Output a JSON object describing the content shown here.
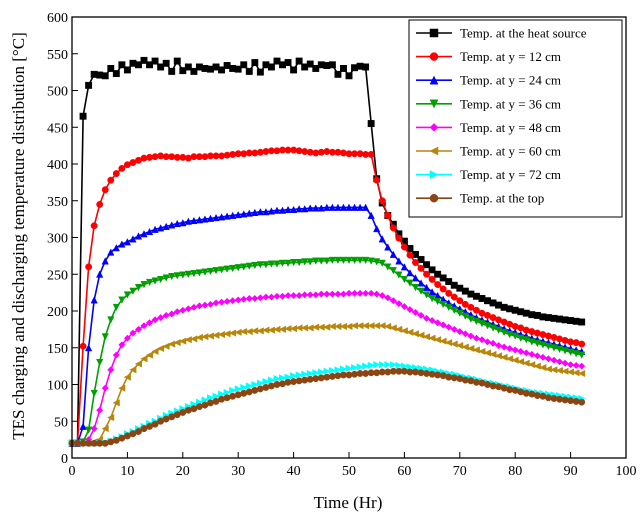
{
  "chart_data": {
    "type": "line",
    "xlabel": "Time (Hr)",
    "ylabel": "TES charging and discharging temperature distribution [°C]",
    "xlim": [
      0,
      100
    ],
    "ylim": [
      0,
      600
    ],
    "xticks": [
      0,
      10,
      20,
      30,
      40,
      50,
      60,
      70,
      80,
      90,
      100
    ],
    "yticks": [
      0,
      50,
      100,
      150,
      200,
      250,
      300,
      350,
      400,
      450,
      500,
      550,
      600
    ],
    "grid": false,
    "legend_position": "top-right",
    "x": [
      0,
      1,
      2,
      3,
      4,
      5,
      6,
      7,
      8,
      9,
      10,
      11,
      12,
      13,
      14,
      15,
      16,
      17,
      18,
      19,
      20,
      21,
      22,
      23,
      24,
      25,
      26,
      27,
      28,
      29,
      30,
      31,
      32,
      33,
      34,
      35,
      36,
      37,
      38,
      39,
      40,
      41,
      42,
      43,
      44,
      45,
      46,
      47,
      48,
      49,
      50,
      51,
      52,
      53,
      54,
      55,
      56,
      57,
      58,
      59,
      60,
      61,
      62,
      63,
      64,
      65,
      66,
      67,
      68,
      69,
      70,
      71,
      72,
      73,
      74,
      75,
      76,
      77,
      78,
      79,
      80,
      81,
      82,
      83,
      84,
      85,
      86,
      87,
      88,
      89,
      90,
      91,
      92
    ],
    "series": [
      {
        "name": "Temp. at the heat source",
        "color": "#000000",
        "marker": "square",
        "values": [
          20,
          20,
          465,
          507,
          522,
          521,
          520,
          530,
          523,
          535,
          528,
          537,
          535,
          541,
          535,
          540,
          532,
          537,
          526,
          540,
          527,
          532,
          526,
          532,
          530,
          529,
          532,
          528,
          534,
          530,
          529,
          535,
          526,
          538,
          525,
          535,
          532,
          540,
          535,
          538,
          528,
          540,
          532,
          536,
          530,
          535,
          534,
          535,
          522,
          530,
          520,
          531,
          533,
          532,
          455,
          380,
          347,
          330,
          318,
          305,
          295,
          285,
          277,
          270,
          263,
          256,
          250,
          245,
          240,
          235,
          231,
          227,
          223,
          220,
          217,
          214,
          211,
          208,
          205,
          203,
          201,
          199,
          197,
          195,
          194,
          192,
          191,
          190,
          189,
          188,
          187,
          186,
          185
        ]
      },
      {
        "name": "Temp. at y = 12 cm",
        "color": "#ff0000",
        "marker": "circle",
        "values": [
          20,
          20,
          152,
          260,
          316,
          345,
          365,
          378,
          387,
          394,
          399,
          402,
          405,
          408,
          409,
          410,
          411,
          410,
          410,
          409,
          409,
          408,
          410,
          410,
          410,
          411,
          411,
          411,
          412,
          413,
          414,
          414,
          415,
          415,
          416,
          417,
          418,
          418,
          419,
          419,
          419,
          418,
          417,
          416,
          415,
          416,
          417,
          416,
          416,
          415,
          414,
          414,
          414,
          413,
          413,
          378,
          350,
          330,
          313,
          299,
          287,
          276,
          266,
          258,
          250,
          243,
          236,
          230,
          224,
          219,
          214,
          209,
          205,
          201,
          197,
          194,
          191,
          188,
          185,
          182,
          179,
          177,
          174,
          172,
          170,
          168,
          166,
          164,
          162,
          160,
          158,
          157,
          155
        ]
      },
      {
        "name": "Temp. at y = 24 cm",
        "color": "#0000ff",
        "marker": "triangle-up",
        "values": [
          20,
          20,
          43,
          150,
          215,
          250,
          268,
          280,
          286,
          291,
          294,
          298,
          302,
          305,
          308,
          311,
          313,
          315,
          317,
          319,
          320,
          322,
          323,
          324,
          325,
          326,
          327,
          328,
          329,
          330,
          331,
          332,
          333,
          334,
          335,
          335,
          336,
          337,
          337,
          338,
          338,
          339,
          339,
          340,
          340,
          340,
          341,
          341,
          341,
          341,
          341,
          341,
          341,
          341,
          330,
          312,
          298,
          287,
          277,
          268,
          260,
          252,
          245,
          238,
          232,
          226,
          221,
          216,
          211,
          207,
          203,
          199,
          195,
          191,
          188,
          185,
          182,
          179,
          176,
          173,
          171,
          168,
          166,
          163,
          161,
          159,
          157,
          155,
          153,
          151,
          149,
          147,
          145
        ]
      },
      {
        "name": "Temp. at y = 36 cm",
        "color": "#00a000",
        "marker": "triangle-down",
        "values": [
          20,
          20,
          22,
          38,
          88,
          130,
          165,
          188,
          205,
          215,
          222,
          227,
          232,
          236,
          239,
          241,
          243,
          245,
          247,
          248,
          249,
          250,
          251,
          252,
          253,
          254,
          255,
          256,
          257,
          258,
          259,
          260,
          261,
          262,
          263,
          263,
          264,
          264,
          265,
          265,
          266,
          266,
          267,
          267,
          268,
          268,
          268,
          269,
          269,
          269,
          269,
          269,
          269,
          269,
          268,
          267,
          265,
          260,
          255,
          249,
          243,
          238,
          232,
          227,
          222,
          217,
          213,
          209,
          205,
          201,
          197,
          193,
          189,
          186,
          183,
          180,
          177,
          174,
          171,
          168,
          166,
          163,
          161,
          158,
          156,
          154,
          152,
          150,
          148,
          146,
          144,
          142,
          140
        ]
      },
      {
        "name": "Temp. at y = 48 cm",
        "color": "#ff00ff",
        "marker": "diamond",
        "values": [
          20,
          20,
          20,
          25,
          40,
          65,
          95,
          120,
          140,
          154,
          163,
          170,
          175,
          180,
          184,
          188,
          191,
          194,
          196,
          199,
          201,
          203,
          205,
          207,
          208,
          209,
          211,
          212,
          213,
          214,
          215,
          216,
          217,
          217,
          218,
          219,
          219,
          220,
          220,
          221,
          221,
          221,
          222,
          222,
          222,
          223,
          223,
          223,
          223,
          223,
          224,
          224,
          224,
          224,
          224,
          223,
          221,
          218,
          214,
          210,
          206,
          202,
          198,
          194,
          190,
          187,
          184,
          181,
          178,
          175,
          172,
          169,
          166,
          163,
          161,
          158,
          156,
          153,
          151,
          149,
          147,
          145,
          143,
          141,
          139,
          137,
          135,
          133,
          131,
          129,
          127,
          126,
          125
        ]
      },
      {
        "name": "Temp. at y = 60 cm",
        "color": "#b8860b",
        "marker": "triangle-left",
        "values": [
          20,
          20,
          20,
          20,
          22,
          25,
          40,
          55,
          75,
          95,
          110,
          120,
          128,
          135,
          140,
          145,
          149,
          152,
          155,
          157,
          159,
          161,
          162,
          164,
          165,
          166,
          167,
          168,
          169,
          170,
          171,
          172,
          172,
          173,
          173,
          174,
          174,
          175,
          175,
          176,
          176,
          177,
          177,
          177,
          178,
          178,
          178,
          179,
          179,
          179,
          179,
          180,
          180,
          180,
          180,
          180,
          180,
          179,
          177,
          175,
          173,
          171,
          169,
          167,
          165,
          163,
          161,
          159,
          157,
          155,
          153,
          151,
          149,
          147,
          145,
          143,
          141,
          139,
          137,
          135,
          133,
          131,
          129,
          127,
          125,
          123,
          121,
          120,
          119,
          118,
          117,
          116,
          115
        ]
      },
      {
        "name": "Temp. at y = 72 cm",
        "color": "#00ffff",
        "marker": "triangle-right",
        "values": [
          20,
          20,
          20,
          20,
          20,
          20,
          21,
          23,
          26,
          29,
          33,
          36,
          40,
          43,
          47,
          50,
          54,
          58,
          61,
          64,
          67,
          70,
          73,
          76,
          79,
          82,
          84,
          87,
          89,
          92,
          94,
          96,
          98,
          100,
          102,
          104,
          106,
          108,
          109,
          110,
          112,
          113,
          114,
          115,
          116,
          117,
          118,
          119,
          120,
          121,
          122,
          123,
          124,
          125,
          126,
          127,
          127,
          127,
          127,
          126,
          125,
          124,
          123,
          122,
          121,
          120,
          118,
          117,
          115,
          114,
          112,
          110,
          109,
          107,
          105,
          103,
          102,
          100,
          98,
          97,
          95,
          93,
          92,
          90,
          89,
          88,
          87,
          86,
          85,
          84,
          83,
          82,
          81
        ]
      },
      {
        "name": "Temp. at the top",
        "color": "#8b4513",
        "marker": "circle",
        "values": [
          20,
          20,
          20,
          20,
          20,
          20,
          20,
          22,
          24,
          27,
          30,
          33,
          36,
          40,
          43,
          46,
          50,
          53,
          56,
          59,
          62,
          65,
          67,
          70,
          72,
          75,
          77,
          80,
          82,
          84,
          86,
          88,
          90,
          92,
          94,
          96,
          98,
          100,
          101,
          103,
          104,
          105,
          106,
          107,
          108,
          109,
          110,
          111,
          112,
          113,
          113,
          114,
          115,
          115,
          116,
          116,
          117,
          117,
          118,
          118,
          118,
          117,
          117,
          116,
          115,
          114,
          113,
          112,
          110,
          109,
          108,
          106,
          105,
          103,
          102,
          100,
          98,
          97,
          95,
          93,
          92,
          90,
          88,
          87,
          85,
          84,
          82,
          81,
          80,
          79,
          78,
          77,
          76
        ]
      }
    ]
  }
}
